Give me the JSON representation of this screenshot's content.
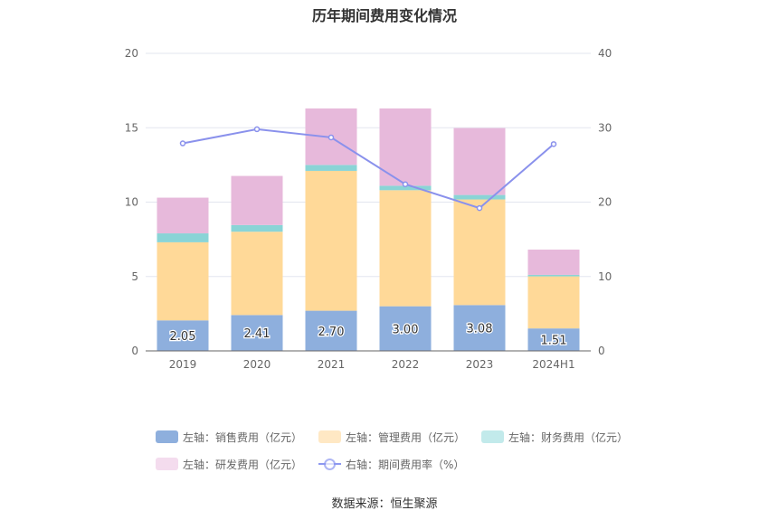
{
  "title": "历年期间费用变化情况",
  "source": "数据来源：恒生聚源",
  "chart_data": {
    "type": "bar",
    "stacked": true,
    "categories": [
      "2019",
      "2020",
      "2021",
      "2022",
      "2023",
      "2024H1"
    ],
    "left_axis": {
      "ylim": [
        0,
        20
      ],
      "ticks": [
        "0",
        "5",
        "10",
        "15",
        "20"
      ]
    },
    "right_axis": {
      "ylim": [
        0,
        40
      ],
      "ticks": [
        "0",
        "10",
        "20",
        "30",
        "40"
      ]
    },
    "series": [
      {
        "name": "左轴：销售费用（亿元）",
        "axis": "left",
        "kind": "bar",
        "color": "#8EAFDD",
        "values": [
          2.05,
          2.41,
          2.7,
          3.0,
          3.08,
          1.51
        ],
        "labels": [
          "2.05",
          "2.41",
          "2.70",
          "3.00",
          "3.08",
          "1.51"
        ]
      },
      {
        "name": "左轴：管理费用（亿元）",
        "axis": "left",
        "kind": "bar",
        "color": "#FFD998",
        "values": [
          5.25,
          5.6,
          9.4,
          7.8,
          7.1,
          3.5
        ]
      },
      {
        "name": "左轴：财务费用（亿元）",
        "axis": "left",
        "kind": "bar",
        "color": "#8AD4D6",
        "values": [
          0.6,
          0.45,
          0.4,
          0.3,
          0.3,
          0.1
        ]
      },
      {
        "name": "左轴：研发费用（亿元）",
        "axis": "left",
        "kind": "bar",
        "color": "#E7B9DB",
        "values": [
          2.4,
          3.3,
          3.8,
          5.2,
          4.5,
          1.7
        ]
      },
      {
        "name": "右轴：期间费用率（%）",
        "axis": "right",
        "kind": "line",
        "color": "#8A91EC",
        "values": [
          27.9,
          29.8,
          28.7,
          22.4,
          19.2,
          27.8
        ]
      }
    ],
    "legend": {
      "placement": "bottom"
    },
    "grid": true
  }
}
